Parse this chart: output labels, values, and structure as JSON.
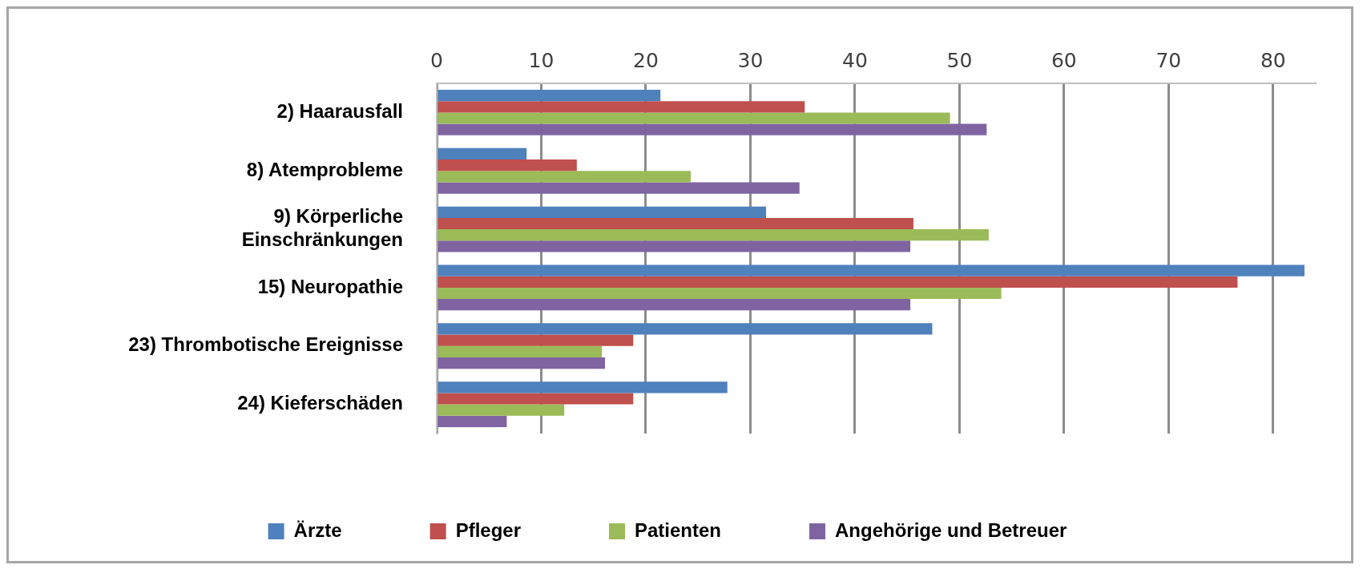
{
  "chart_data": {
    "type": "bar",
    "orientation": "horizontal",
    "categories": [
      "2) Haarausfall",
      "8) Atemprobleme",
      "9) Körperliche\nEinschränkungen",
      "15) Neuropathie",
      "23) Thrombotische Ereignisse",
      "24) Kieferschäden"
    ],
    "series": [
      {
        "name": "Ärzte",
        "color": "#4f81bd",
        "values": [
          21.4,
          8.6,
          31.5,
          83,
          47.4,
          27.8
        ]
      },
      {
        "name": "Pfleger",
        "color": "#c0504d",
        "values": [
          35.2,
          13.4,
          45.6,
          76.6,
          18.8,
          18.8
        ]
      },
      {
        "name": "Patienten",
        "color": "#9bbb59",
        "values": [
          49.1,
          24.3,
          52.8,
          54,
          15.8,
          12.2
        ]
      },
      {
        "name": "Angehörige und Betreuer",
        "color": "#8064a2",
        "values": [
          52.6,
          34.7,
          45.3,
          45.3,
          16.1,
          6.7
        ]
      }
    ],
    "xlim": [
      0,
      84
    ],
    "xticks": [
      0,
      10,
      20,
      30,
      40,
      50,
      60,
      70,
      80
    ],
    "grid": "x",
    "legend": "bottom"
  }
}
